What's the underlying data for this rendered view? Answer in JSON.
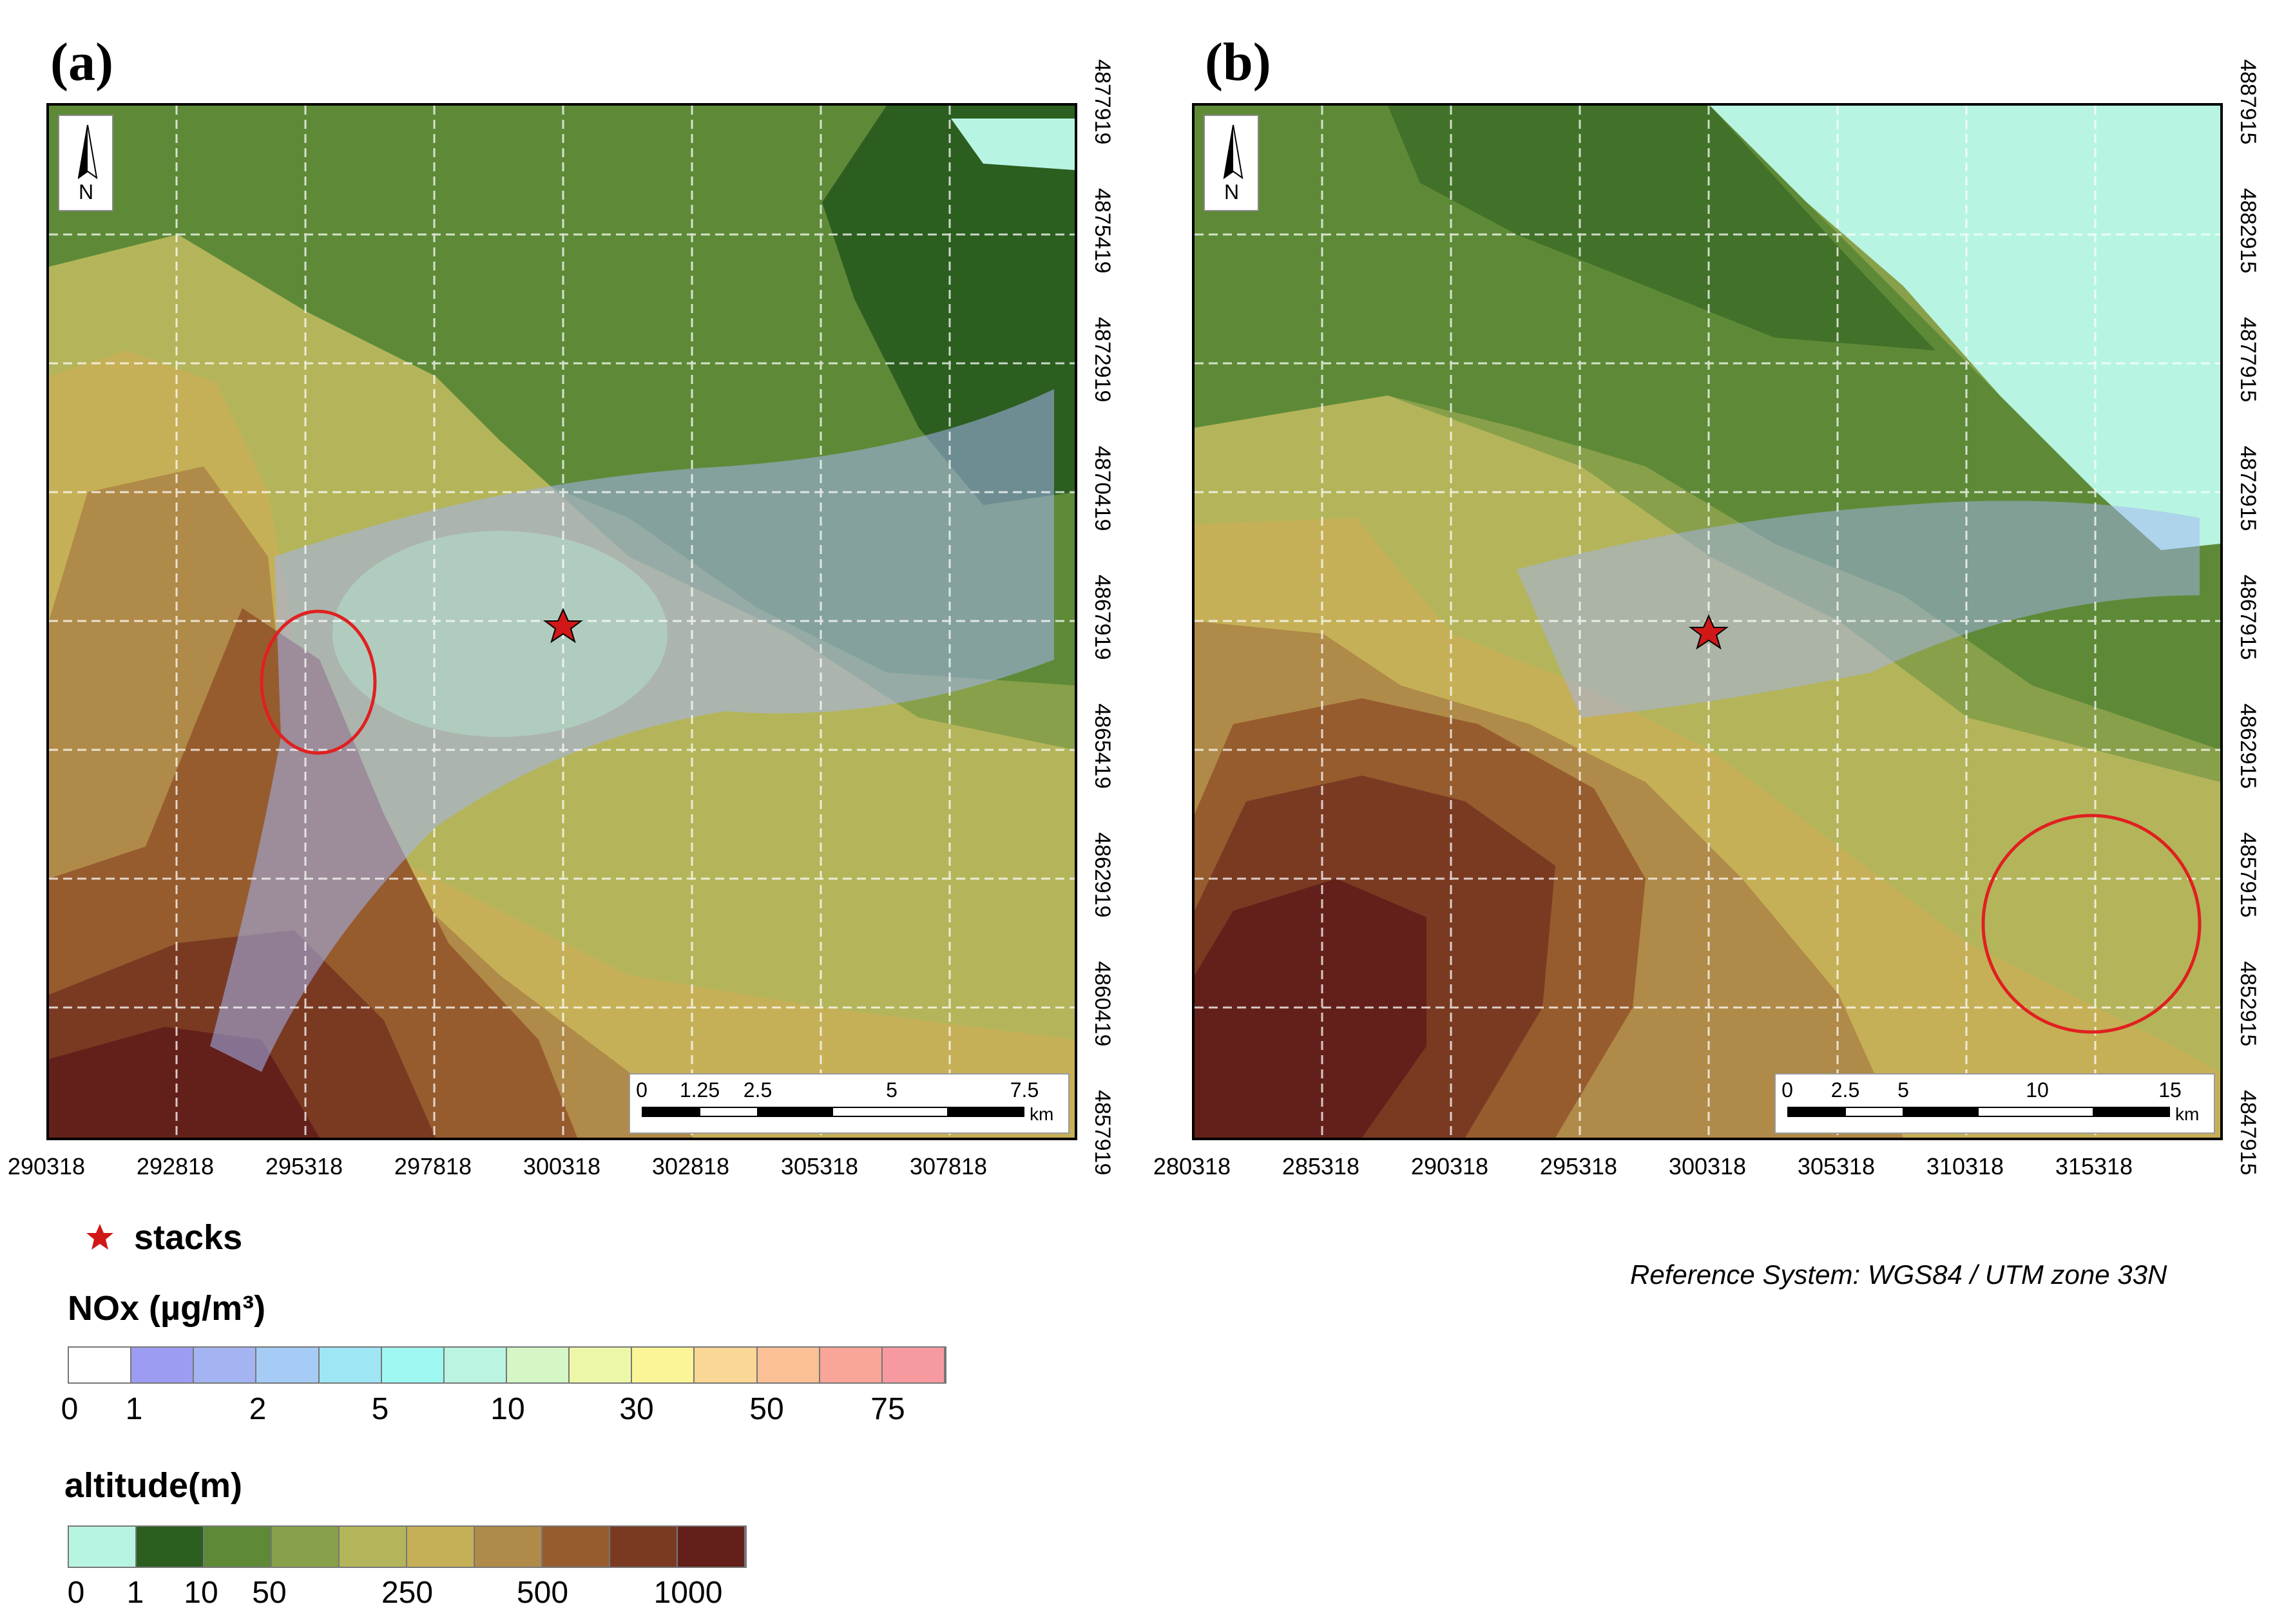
{
  "panels": [
    {
      "label": "(a)",
      "x_ticks": [
        "290318",
        "292818",
        "295318",
        "297818",
        "300318",
        "302818",
        "305318",
        "307818"
      ],
      "y_ticks": [
        "4877919",
        "4875419",
        "4872919",
        "4870419",
        "4867919",
        "4865419",
        "4862919",
        "4860419",
        "4857919"
      ],
      "north_label": "N",
      "scale_labels": [
        "0",
        "1.25",
        "2.5",
        "5",
        "7.5"
      ],
      "scale_unit": "km"
    },
    {
      "label": "(b)",
      "x_ticks": [
        "280318",
        "285318",
        "290318",
        "295318",
        "300318",
        "305318",
        "310318",
        "315318"
      ],
      "y_ticks": [
        "4887915",
        "4882915",
        "4877915",
        "4872915",
        "4867915",
        "4862915",
        "4857915",
        "4852915",
        "4847915"
      ],
      "north_label": "N",
      "scale_labels": [
        "0",
        "2.5",
        "5",
        "10",
        "15"
      ],
      "scale_unit": "km"
    }
  ],
  "legend": {
    "stacks_label": "stacks",
    "nox_title": "NOx (µg/m³)",
    "nox_labels": [
      "0",
      "1",
      "2",
      "5",
      "10",
      "30",
      "50",
      "75"
    ],
    "nox_colors": [
      "#ffffff",
      "#9c9cf2",
      "#a4b4f2",
      "#a6cbf5",
      "#9fe6f5",
      "#9ff7f2",
      "#b9f5e0",
      "#d4f7c5",
      "#edf7a8",
      "#fbf597",
      "#fbd795",
      "#fbc095",
      "#f9a59a",
      "#f79aa0"
    ],
    "altitude_title": "altitude(m)",
    "altitude_labels": [
      "0",
      "1",
      "10",
      "50",
      "250",
      "500",
      "1000"
    ],
    "altitude_colors": [
      "#b7f5e2",
      "#2c5e1f",
      "#5e8a37",
      "#88a04a",
      "#b4b55a",
      "#c6b057",
      "#b08a48",
      "#965c2e",
      "#7a3a22",
      "#63201a"
    ]
  },
  "reference_system": "Reference System: WGS84 / UTM zone 33N",
  "colors": {
    "star": "#d01818",
    "circle": "#e02020",
    "sea": "#b7f5e2"
  }
}
